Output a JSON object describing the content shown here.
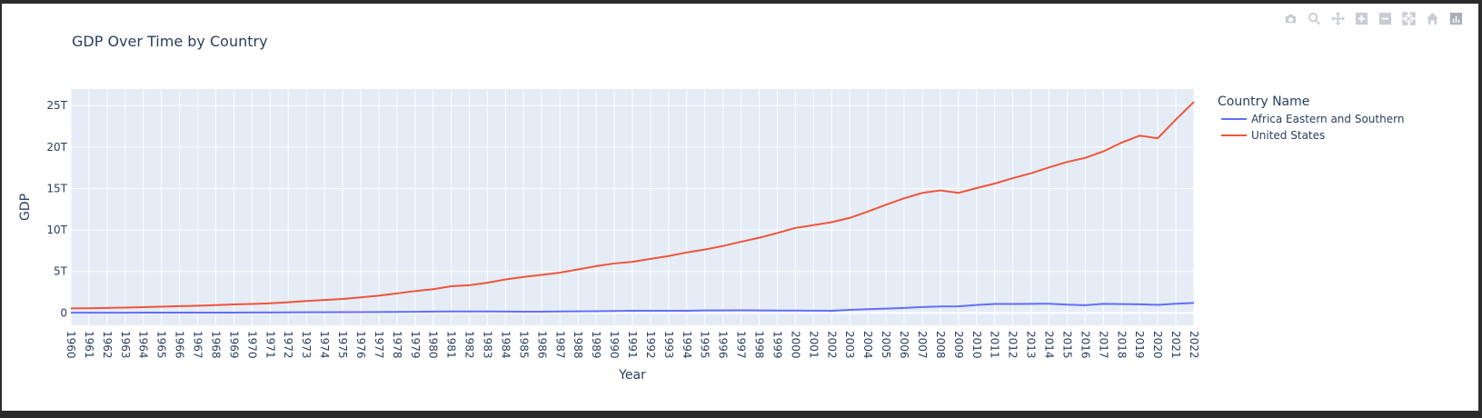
{
  "modebar": {
    "buttons": [
      "camera-icon",
      "zoom-icon",
      "pan-icon",
      "zoom-in-icon",
      "zoom-out-icon",
      "autoscale-icon",
      "home-icon",
      "plotly-logo-icon"
    ]
  },
  "chart_data": {
    "type": "line",
    "title": "GDP Over Time by Country",
    "xlabel": "Year",
    "ylabel": "GDP",
    "legend_title": "Country Name",
    "legend_position": "top-right",
    "grid": true,
    "x": [
      "1960",
      "1961",
      "1962",
      "1963",
      "1964",
      "1965",
      "1966",
      "1967",
      "1968",
      "1969",
      "1970",
      "1971",
      "1972",
      "1973",
      "1974",
      "1975",
      "1976",
      "1977",
      "1978",
      "1979",
      "1980",
      "1981",
      "1982",
      "1983",
      "1984",
      "1985",
      "1986",
      "1987",
      "1988",
      "1989",
      "1990",
      "1991",
      "1992",
      "1993",
      "1994",
      "1995",
      "1996",
      "1997",
      "1998",
      "1999",
      "2000",
      "2001",
      "2002",
      "2003",
      "2004",
      "2005",
      "2006",
      "2007",
      "2008",
      "2009",
      "2010",
      "2011",
      "2012",
      "2013",
      "2014",
      "2015",
      "2016",
      "2017",
      "2018",
      "2019",
      "2020",
      "2021",
      "2022"
    ],
    "ylim": [
      -1.5,
      27
    ],
    "yticks": [
      0,
      5,
      10,
      15,
      20,
      25
    ],
    "ytick_labels": [
      "0",
      "5T",
      "10T",
      "15T",
      "20T",
      "25T"
    ],
    "series": [
      {
        "name": "Africa Eastern and Southern",
        "color": "#636efa",
        "values": [
          0.02,
          0.02,
          0.02,
          0.02,
          0.03,
          0.03,
          0.03,
          0.03,
          0.04,
          0.04,
          0.05,
          0.05,
          0.06,
          0.07,
          0.08,
          0.09,
          0.09,
          0.1,
          0.11,
          0.13,
          0.16,
          0.17,
          0.17,
          0.17,
          0.16,
          0.14,
          0.15,
          0.17,
          0.19,
          0.2,
          0.23,
          0.25,
          0.25,
          0.26,
          0.26,
          0.29,
          0.3,
          0.31,
          0.29,
          0.28,
          0.28,
          0.27,
          0.26,
          0.36,
          0.45,
          0.52,
          0.6,
          0.7,
          0.77,
          0.79,
          0.95,
          1.07,
          1.07,
          1.09,
          1.11,
          0.99,
          0.92,
          1.09,
          1.06,
          1.03,
          0.97,
          1.1,
          1.2
        ]
      },
      {
        "name": "United States",
        "color": "#ef553b",
        "values": [
          0.54,
          0.56,
          0.6,
          0.64,
          0.69,
          0.74,
          0.82,
          0.86,
          0.94,
          1.02,
          1.07,
          1.16,
          1.28,
          1.43,
          1.55,
          1.68,
          1.87,
          2.08,
          2.35,
          2.63,
          2.86,
          3.21,
          3.34,
          3.64,
          4.04,
          4.34,
          4.58,
          4.86,
          5.24,
          5.64,
          5.96,
          6.16,
          6.52,
          6.86,
          7.29,
          7.64,
          8.07,
          8.58,
          9.06,
          9.63,
          10.25,
          10.58,
          10.94,
          11.46,
          12.22,
          13.04,
          13.82,
          14.47,
          14.77,
          14.48,
          15.05,
          15.6,
          16.25,
          16.84,
          17.55,
          18.21,
          18.7,
          19.48,
          20.53,
          21.38,
          21.06,
          23.32,
          25.46
        ]
      }
    ]
  }
}
